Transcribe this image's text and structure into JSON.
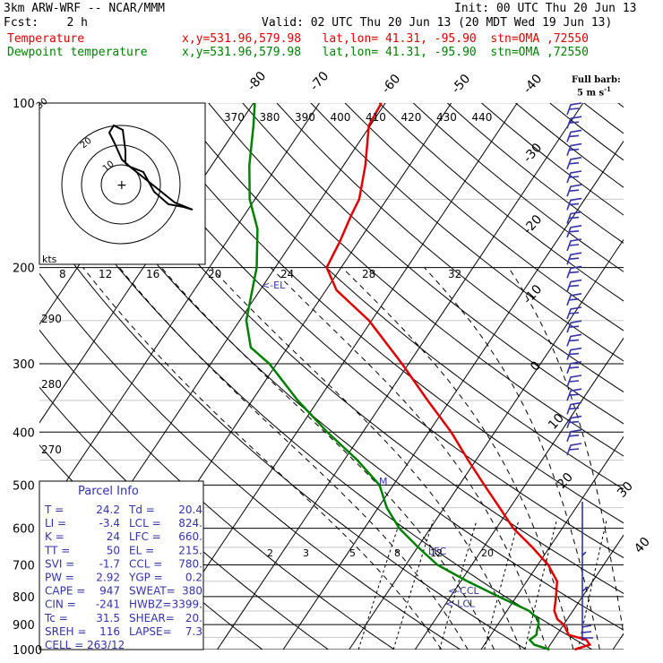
{
  "header": {
    "model": "3km ARW-WRF -- NCAR/MMM",
    "init": "Init: 00 UTC Thu 20 Jun 13",
    "fcst": "Fcst:    2 h",
    "valid": "Valid: 02 UTC Thu 20 Jun 13 (20 MDT Wed 19 Jun 13)",
    "temp_label": "Temperature",
    "temp_loc": "x,y=531.96,579.98   lat,lon= 41.31, -95.90  stn=OMA ,72550",
    "dew_label": "Dewpoint temperature",
    "dew_loc": "x,y=531.96,579.98   lat,lon= 41.31, -95.90  stn=OMA ,72550",
    "barb_note": "Full barb:",
    "barb_unit": "5 m s",
    "barb_unit_sup": "-1"
  },
  "colors": {
    "temperature": "#e00000",
    "dewpoint": "#008000",
    "barbs": "#3333aa",
    "isotherm": "#000000"
  },
  "chart_data": {
    "type": "line",
    "subtype": "skew-T log-P sounding",
    "ylabel": "",
    "y_axis_scale": "log pressure",
    "pressure_ticks": [
      100,
      200,
      300,
      400,
      500,
      600,
      700,
      800,
      900,
      1000
    ],
    "isotherm_labels": [
      -80,
      -70,
      -60,
      -50,
      -40,
      -30,
      -20,
      -10,
      0,
      10,
      20,
      30,
      40
    ],
    "theta_labels": [
      370,
      380,
      390,
      400,
      410,
      420,
      430,
      440
    ],
    "theta_side_labels": [
      290,
      280,
      270
    ],
    "mixing_ratio_labels": [
      2,
      3,
      5,
      8,
      12,
      20
    ],
    "hodo_speed_labels": [
      "kts",
      8,
      12,
      16,
      20,
      24,
      28,
      32
    ],
    "series": [
      {
        "name": "Temperature",
        "points": [
          [
            1000,
            24.2
          ],
          [
            980,
            26.0
          ],
          [
            960,
            25.0
          ],
          [
            940,
            21.8
          ],
          [
            900,
            20.0
          ],
          [
            880,
            18.5
          ],
          [
            850,
            17.2
          ],
          [
            800,
            16.0
          ],
          [
            750,
            14.6
          ],
          [
            700,
            11.6
          ],
          [
            650,
            7.4
          ],
          [
            600,
            2.6
          ],
          [
            550,
            -1.6
          ],
          [
            500,
            -6.2
          ],
          [
            450,
            -11.2
          ],
          [
            400,
            -16.6
          ],
          [
            350,
            -23.4
          ],
          [
            300,
            -31.0
          ],
          [
            250,
            -40.4
          ],
          [
            220,
            -48.4
          ],
          [
            200,
            -52.2
          ],
          [
            180,
            -52.8
          ],
          [
            160,
            -53.8
          ],
          [
            150,
            -54.2
          ],
          [
            130,
            -56.7
          ],
          [
            110,
            -60.2
          ],
          [
            100,
            -60.6
          ]
        ]
      },
      {
        "name": "Dewpoint temperature",
        "points": [
          [
            1000,
            20.4
          ],
          [
            980,
            17.6
          ],
          [
            960,
            16.4
          ],
          [
            940,
            16.9
          ],
          [
            920,
            16.5
          ],
          [
            900,
            16.2
          ],
          [
            880,
            15.6
          ],
          [
            850,
            13.4
          ],
          [
            800,
            7.3
          ],
          [
            750,
            1.0
          ],
          [
            700,
            -5.2
          ],
          [
            650,
            -9.9
          ],
          [
            600,
            -14.7
          ],
          [
            550,
            -18.7
          ],
          [
            500,
            -22.1
          ],
          [
            450,
            -28.0
          ],
          [
            400,
            -35.4
          ],
          [
            350,
            -43.1
          ],
          [
            300,
            -51.1
          ],
          [
            280,
            -55.6
          ],
          [
            250,
            -59.0
          ],
          [
            200,
            -62.8
          ],
          [
            170,
            -66.6
          ],
          [
            150,
            -70.8
          ],
          [
            130,
            -74.3
          ],
          [
            110,
            -77.7
          ],
          [
            100,
            -79.8
          ]
        ]
      }
    ],
    "level_markers": [
      {
        "label": "<-EL",
        "p": 215
      },
      {
        "label": "LFC",
        "p": 660
      },
      {
        "label": "<-CCL",
        "p": 780
      },
      {
        "label": "<-LCL",
        "p": 824
      }
    ],
    "wind_profile_label": "M"
  },
  "parcel": {
    "title": "Parcel Info",
    "rows": [
      [
        "T   =",
        "24.2",
        "Td  =",
        "20.4"
      ],
      [
        "LI  =",
        "-3.4",
        "LCL =",
        "824."
      ],
      [
        "K   =",
        "24",
        "LFC =",
        "660."
      ],
      [
        "TT  =",
        "50",
        "EL  =",
        "215."
      ],
      [
        "SVI =",
        "-1.7",
        "CCL =",
        "780."
      ],
      [
        "PW  =",
        "2.92",
        "YGP =",
        "0.2"
      ],
      [
        "CAPE =",
        "947",
        "SWEAT=",
        "380"
      ],
      [
        "CIN  =",
        "-241",
        "HWBZ=",
        "3399."
      ],
      [
        "Tc  =",
        "31.5",
        "SHEAR=",
        "20."
      ],
      [
        "SREH =",
        "116",
        "LAPSE=",
        "7.3"
      ]
    ],
    "cell": "CELL = 263/12"
  }
}
